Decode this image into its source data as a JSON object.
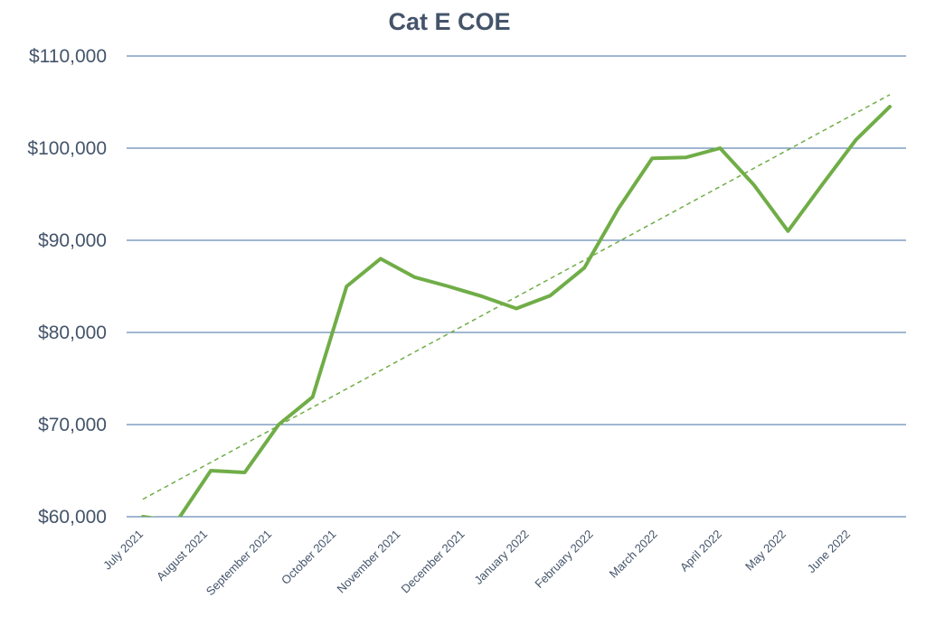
{
  "chart_data": {
    "type": "line",
    "title": "Cat E COE",
    "xlabel": "",
    "ylabel": "",
    "ylim": [
      60000,
      110000
    ],
    "y_ticks": [
      {
        "value": 60000,
        "label": "$60,000"
      },
      {
        "value": 70000,
        "label": "$70,000"
      },
      {
        "value": 80000,
        "label": "$80,000"
      },
      {
        "value": 90000,
        "label": "$90,000"
      },
      {
        "value": 100000,
        "label": "$100,000"
      },
      {
        "value": 110000,
        "label": "$110,000"
      }
    ],
    "x_tick_labels": [
      "July 2021",
      "August 2021",
      "September 2021",
      "October 2021",
      "November 2021",
      "December 2021",
      "January 2022",
      "February 2022",
      "March 2022",
      "April 2022",
      "May 2022",
      "June 2022"
    ],
    "grid": true,
    "legend": "none",
    "series": [
      {
        "values": [
          60000,
          59500,
          65000,
          64800,
          70000,
          73000,
          85000,
          88000,
          86000,
          85000,
          83900,
          82600,
          84000,
          87000,
          93400,
          98900,
          99000,
          100000,
          96000,
          91000,
          96000,
          100900,
          104500
        ],
        "color": "#70ad47",
        "style": "solid"
      },
      {
        "values": [
          61900,
          105800
        ],
        "color": "#70ad47",
        "style": "dashed"
      }
    ]
  }
}
